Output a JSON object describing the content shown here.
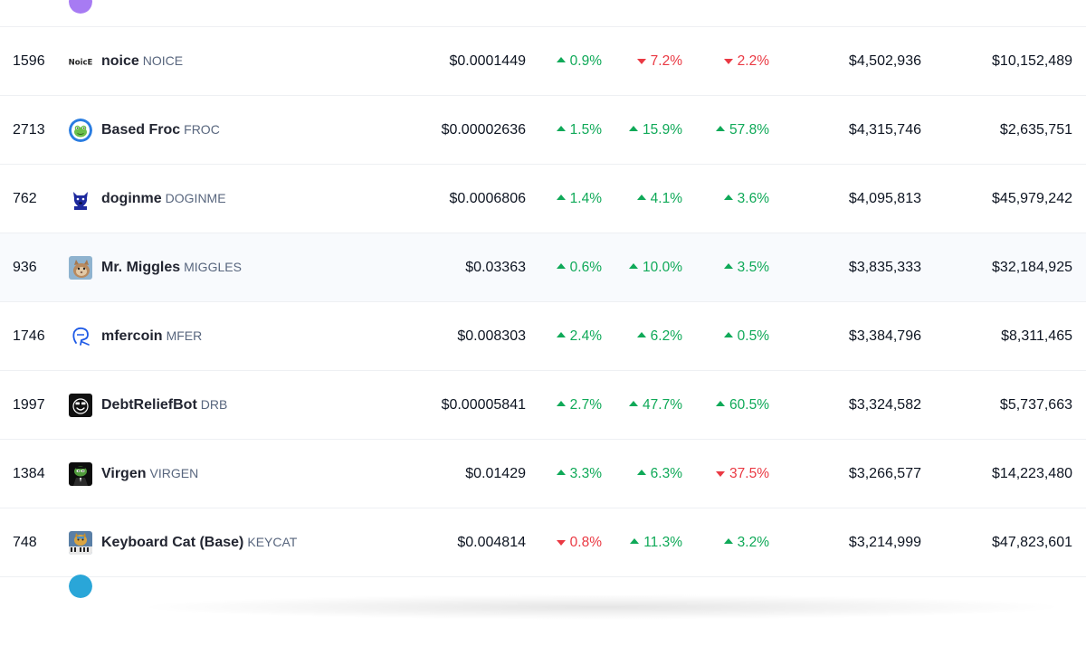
{
  "top_partial_row": {
    "vol": "$",
    "mcap": "$",
    "logo_color": "#a77bf3"
  },
  "rows": [
    {
      "rank": "1596",
      "name": "noice",
      "symbol": "NOICE",
      "price": "$0.0001449",
      "h1": "0.9%",
      "h1_dir": "up",
      "h24": "7.2%",
      "h24_dir": "down",
      "d7": "2.2%",
      "d7_dir": "down",
      "volume": "$4,502,936",
      "mcap": "$10,152,489",
      "logo": "noice-logo-icon",
      "logo_text": "NoicE"
    },
    {
      "rank": "2713",
      "name": "Based Froc",
      "symbol": "FROC",
      "price": "$0.00002636",
      "h1": "1.5%",
      "h1_dir": "up",
      "h24": "15.9%",
      "h24_dir": "up",
      "d7": "57.8%",
      "d7_dir": "up",
      "volume": "$4,315,746",
      "mcap": "$2,635,751",
      "logo": "frog-logo-icon"
    },
    {
      "rank": "762",
      "name": "doginme",
      "symbol": "DOGINME",
      "price": "$0.0006806",
      "h1": "1.4%",
      "h1_dir": "up",
      "h24": "4.1%",
      "h24_dir": "up",
      "d7": "3.6%",
      "d7_dir": "up",
      "volume": "$4,095,813",
      "mcap": "$45,979,242",
      "logo": "dog-logo-icon"
    },
    {
      "rank": "936",
      "name": "Mr. Miggles",
      "symbol": "MIGGLES",
      "price": "$0.03363",
      "h1": "0.6%",
      "h1_dir": "up",
      "h24": "10.0%",
      "h24_dir": "up",
      "d7": "3.5%",
      "d7_dir": "up",
      "volume": "$3,835,333",
      "mcap": "$32,184,925",
      "logo": "cat-photo-icon"
    },
    {
      "rank": "1746",
      "name": "mfercoin",
      "symbol": "MFER",
      "price": "$0.008303",
      "h1": "2.4%",
      "h1_dir": "up",
      "h24": "6.2%",
      "h24_dir": "up",
      "d7": "0.5%",
      "d7_dir": "up",
      "volume": "$3,384,796",
      "mcap": "$8,311,465",
      "logo": "mfer-face-icon"
    },
    {
      "rank": "1997",
      "name": "DebtReliefBot",
      "symbol": "DRB",
      "price": "$0.00005841",
      "h1": "2.7%",
      "h1_dir": "up",
      "h24": "47.7%",
      "h24_dir": "up",
      "d7": "60.5%",
      "d7_dir": "up",
      "volume": "$3,324,582",
      "mcap": "$5,737,663",
      "logo": "smiley-bot-icon"
    },
    {
      "rank": "1384",
      "name": "Virgen",
      "symbol": "VIRGEN",
      "price": "$0.01429",
      "h1": "3.3%",
      "h1_dir": "up",
      "h24": "6.3%",
      "h24_dir": "up",
      "d7": "37.5%",
      "d7_dir": "down",
      "volume": "$3,266,577",
      "mcap": "$14,223,480",
      "logo": "pepe-suit-icon"
    },
    {
      "rank": "748",
      "name": "Keyboard Cat (Base)",
      "symbol": "KEYCAT",
      "price": "$0.004814",
      "h1": "0.8%",
      "h1_dir": "down",
      "h24": "11.3%",
      "h24_dir": "up",
      "d7": "3.2%",
      "d7_dir": "up",
      "volume": "$3,214,999",
      "mcap": "$47,823,601",
      "logo": "keyboard-cat-icon"
    }
  ],
  "bottom_partial_row": {
    "logo_color": "#2aa6d8"
  },
  "colors": {
    "up": "#0fa958",
    "down": "#ea3943",
    "row_hover": "#f8fafd",
    "divider": "#eef0f3"
  }
}
